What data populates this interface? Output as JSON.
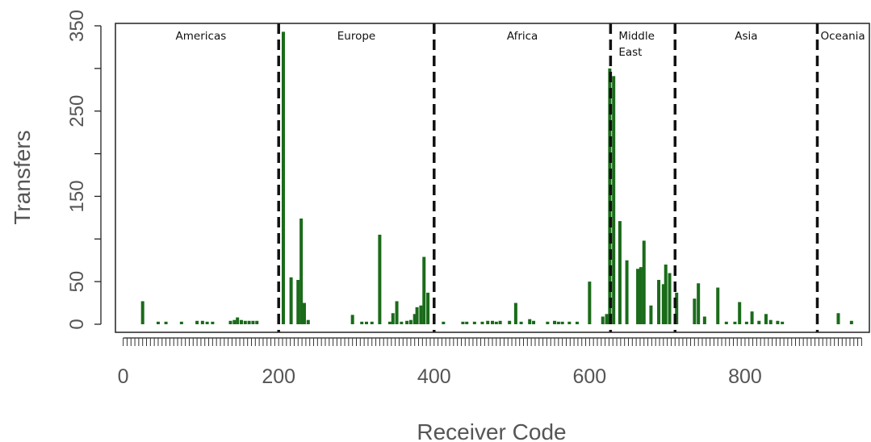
{
  "chart_data": {
    "type": "bar",
    "xlabel": "Receiver Code",
    "ylabel": "Transfers",
    "xlim": [
      -10,
      960
    ],
    "ylim": [
      0,
      350
    ],
    "x_ticks": [
      0,
      200,
      400,
      600,
      800
    ],
    "y_ticks": [
      0,
      50,
      150,
      250,
      350
    ],
    "grid": false,
    "bar_color": "#1a6b1a",
    "region_color": "#111111",
    "regions": [
      {
        "label": "Americas",
        "start": 0,
        "end": 200,
        "label_lines": [
          "Americas"
        ]
      },
      {
        "label": "Europe",
        "start": 200,
        "end": 400,
        "label_lines": [
          "Europe"
        ]
      },
      {
        "label": "Africa",
        "start": 400,
        "end": 627,
        "label_lines": [
          "Africa"
        ]
      },
      {
        "label": "Middle East",
        "start": 627,
        "end": 710,
        "label_lines": [
          "Middle",
          "East"
        ]
      },
      {
        "label": "Asia",
        "start": 710,
        "end": 893,
        "label_lines": [
          "Asia"
        ]
      },
      {
        "label": "Oceania",
        "start": 893,
        "end": 960,
        "label_lines": [
          "Oceania"
        ]
      }
    ],
    "region_boundaries": [
      200,
      400,
      627,
      710,
      893
    ],
    "bars": [
      [
        25,
        27
      ],
      [
        45,
        3
      ],
      [
        55,
        3
      ],
      [
        75,
        3
      ],
      [
        95,
        4
      ],
      [
        102,
        4
      ],
      [
        108,
        3
      ],
      [
        115,
        3
      ],
      [
        138,
        4
      ],
      [
        143,
        5
      ],
      [
        147,
        8
      ],
      [
        152,
        5
      ],
      [
        157,
        4
      ],
      [
        162,
        4
      ],
      [
        167,
        4
      ],
      [
        172,
        4
      ],
      [
        206,
        343
      ],
      [
        216,
        55
      ],
      [
        225,
        52
      ],
      [
        229,
        124
      ],
      [
        233,
        25
      ],
      [
        238,
        5
      ],
      [
        295,
        11
      ],
      [
        307,
        3
      ],
      [
        313,
        3
      ],
      [
        320,
        3
      ],
      [
        330,
        105
      ],
      [
        343,
        3
      ],
      [
        347,
        13
      ],
      [
        352,
        27
      ],
      [
        358,
        3
      ],
      [
        365,
        4
      ],
      [
        370,
        5
      ],
      [
        375,
        12
      ],
      [
        378,
        20
      ],
      [
        383,
        22
      ],
      [
        387,
        79
      ],
      [
        392,
        37
      ],
      [
        412,
        3
      ],
      [
        437,
        3
      ],
      [
        442,
        3
      ],
      [
        452,
        3
      ],
      [
        462,
        3
      ],
      [
        469,
        4
      ],
      [
        475,
        4
      ],
      [
        480,
        3
      ],
      [
        485,
        4
      ],
      [
        497,
        4
      ],
      [
        505,
        25
      ],
      [
        512,
        3
      ],
      [
        523,
        6
      ],
      [
        528,
        4
      ],
      [
        546,
        3
      ],
      [
        555,
        4
      ],
      [
        560,
        3
      ],
      [
        565,
        3
      ],
      [
        574,
        3
      ],
      [
        584,
        3
      ],
      [
        600,
        50
      ],
      [
        617,
        9
      ],
      [
        622,
        12
      ],
      [
        626,
        300
      ],
      [
        631,
        291
      ],
      [
        639,
        121
      ],
      [
        648,
        75
      ],
      [
        662,
        65
      ],
      [
        666,
        67
      ],
      [
        670,
        98
      ],
      [
        679,
        22
      ],
      [
        689,
        52
      ],
      [
        695,
        47
      ],
      [
        698,
        70
      ],
      [
        703,
        60
      ],
      [
        712,
        37
      ],
      [
        735,
        30
      ],
      [
        740,
        48
      ],
      [
        748,
        9
      ],
      [
        765,
        43
      ],
      [
        776,
        3
      ],
      [
        787,
        3
      ],
      [
        793,
        26
      ],
      [
        802,
        3
      ],
      [
        809,
        15
      ],
      [
        818,
        4
      ],
      [
        827,
        12
      ],
      [
        833,
        5
      ],
      [
        842,
        4
      ],
      [
        848,
        3
      ],
      [
        920,
        13
      ],
      [
        937,
        4
      ]
    ]
  }
}
